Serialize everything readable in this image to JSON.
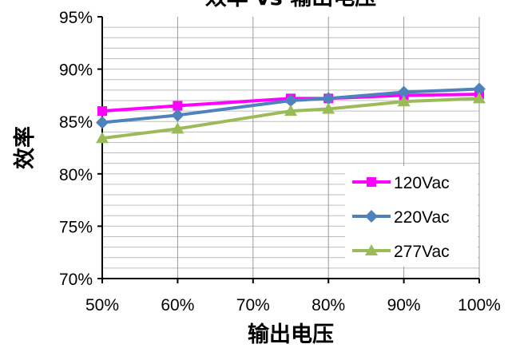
{
  "chart_data": {
    "type": "line",
    "title": "效率 vs 输出电压",
    "xlabel": "输出电压",
    "ylabel": "效率",
    "x": [
      50,
      60,
      75,
      80,
      90,
      100
    ],
    "x_ticks": [
      50,
      60,
      70,
      80,
      90,
      100
    ],
    "x_tick_labels": [
      "50%",
      "60%",
      "70%",
      "80%",
      "90%",
      "100%"
    ],
    "xlim": [
      50,
      100
    ],
    "ylim": [
      70,
      95
    ],
    "y_ticks": [
      70,
      75,
      80,
      85,
      90,
      95
    ],
    "y_tick_labels": [
      "70%",
      "75%",
      "80%",
      "85%",
      "90%",
      "95%"
    ],
    "grid": true,
    "legend_position": "bottom-right",
    "series": [
      {
        "name": "120Vac",
        "color": "#ff00ff",
        "marker": "square",
        "values": [
          86.0,
          86.5,
          87.2,
          87.2,
          87.5,
          87.6
        ]
      },
      {
        "name": "220Vac",
        "color": "#4f81bd",
        "marker": "diamond",
        "values": [
          84.9,
          85.6,
          87.0,
          87.2,
          87.8,
          88.1
        ]
      },
      {
        "name": "277Vac",
        "color": "#9bbb59",
        "marker": "triangle",
        "values": [
          83.4,
          84.3,
          86.0,
          86.2,
          86.9,
          87.2
        ]
      }
    ]
  }
}
